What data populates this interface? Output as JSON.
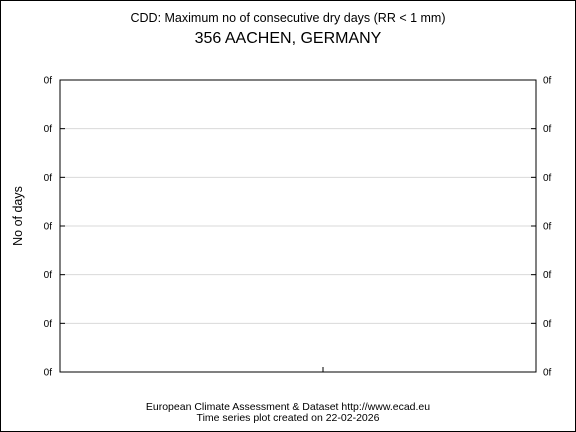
{
  "chart_data": {
    "type": "line",
    "title": "CDD: Maximum no of consecutive dry days (RR < 1 mm)",
    "subtitle": "356 AACHEN, GERMANY",
    "ylabel": "No of days",
    "xlabel": "",
    "y_tick_labels": [
      "0f",
      "0f",
      "0f",
      "0f",
      "0f",
      "0f",
      "0f"
    ],
    "series": [],
    "grid": true,
    "footer": {
      "line1": "European Climate Assessment & Dataset  http://www.ecad.eu",
      "line2": "Time series plot created on 22-02-2026"
    }
  }
}
